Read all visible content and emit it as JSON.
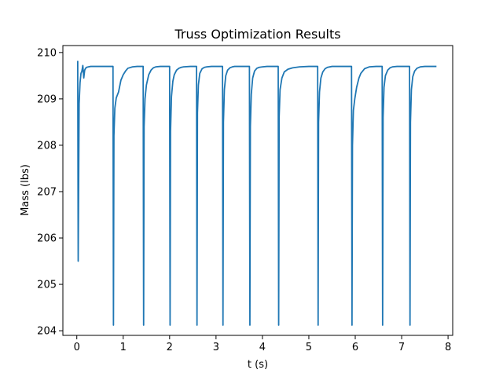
{
  "chart_data": {
    "type": "line",
    "title": "Truss Optimization Results",
    "xlabel": "t (s)",
    "ylabel": "Mass (lbs)",
    "xlim": [
      -0.3,
      8.1
    ],
    "ylim": [
      203.9,
      210.15
    ],
    "xticks": [
      0,
      1,
      2,
      3,
      4,
      5,
      6,
      7,
      8
    ],
    "yticks": [
      204,
      205,
      206,
      207,
      208,
      209,
      210
    ],
    "grid": false,
    "legend": "none",
    "series": [
      {
        "color": "#1f77b4",
        "x": [
          0.02,
          0.03,
          0.05,
          0.07,
          0.09,
          0.11,
          0.13,
          0.15,
          0.17,
          0.19,
          0.21,
          0.25,
          0.3,
          0.45,
          0.6,
          0.78,
          0.79,
          0.8,
          0.82,
          0.85,
          0.9,
          0.95,
          1.0,
          1.05,
          1.1,
          1.2,
          1.3,
          1.43,
          1.44,
          1.45,
          1.47,
          1.5,
          1.55,
          1.6,
          1.65,
          1.7,
          1.8,
          1.9,
          2.0,
          2.01,
          2.02,
          2.04,
          2.07,
          2.1,
          2.15,
          2.2,
          2.25,
          2.3,
          2.45,
          2.58,
          2.59,
          2.6,
          2.62,
          2.65,
          2.7,
          2.75,
          2.8,
          2.9,
          3.0,
          3.14,
          3.15,
          3.16,
          3.18,
          3.21,
          3.25,
          3.3,
          3.35,
          3.4,
          3.5,
          3.6,
          3.72,
          3.73,
          3.74,
          3.76,
          3.79,
          3.83,
          3.88,
          3.93,
          4.0,
          4.1,
          4.2,
          4.34,
          4.35,
          4.36,
          4.38,
          4.42,
          4.47,
          4.55,
          4.65,
          4.8,
          5.0,
          5.19,
          5.2,
          5.21,
          5.23,
          5.26,
          5.3,
          5.35,
          5.4,
          5.5,
          5.6,
          5.8,
          5.92,
          5.93,
          5.94,
          5.96,
          5.99,
          6.03,
          6.08,
          6.12,
          6.2,
          6.3,
          6.45,
          6.58,
          6.59,
          6.6,
          6.62,
          6.65,
          6.7,
          6.75,
          6.8,
          6.9,
          7.0,
          7.17,
          7.18,
          7.19,
          7.21,
          7.24,
          7.28,
          7.33,
          7.4,
          7.5,
          7.6,
          7.75
        ],
        "y": [
          209.82,
          205.5,
          208.9,
          209.35,
          209.55,
          209.6,
          209.72,
          209.45,
          209.62,
          209.66,
          209.68,
          209.69,
          209.7,
          209.7,
          209.7,
          209.7,
          204.12,
          208.2,
          208.8,
          209.02,
          209.15,
          209.4,
          209.52,
          209.6,
          209.66,
          209.69,
          209.7,
          209.7,
          204.12,
          208.4,
          209.0,
          209.3,
          209.52,
          209.62,
          209.67,
          209.69,
          209.7,
          209.7,
          209.7,
          204.12,
          208.3,
          209.05,
          209.38,
          209.52,
          209.62,
          209.66,
          209.68,
          209.69,
          209.7,
          209.7,
          204.12,
          208.7,
          209.3,
          209.55,
          209.65,
          209.68,
          209.69,
          209.7,
          209.7,
          209.7,
          204.12,
          208.5,
          209.2,
          209.5,
          209.62,
          209.67,
          209.69,
          209.7,
          209.7,
          209.7,
          209.7,
          204.12,
          208.4,
          209.1,
          209.45,
          209.6,
          209.66,
          209.68,
          209.69,
          209.7,
          209.7,
          209.7,
          204.12,
          208.6,
          209.2,
          209.45,
          209.58,
          209.64,
          209.67,
          209.69,
          209.7,
          209.7,
          204.12,
          208.5,
          209.15,
          209.45,
          209.58,
          209.65,
          209.68,
          209.7,
          209.7,
          209.7,
          209.7,
          204.12,
          208.0,
          208.75,
          209.0,
          209.25,
          209.45,
          209.55,
          209.65,
          209.69,
          209.7,
          209.7,
          204.12,
          208.6,
          209.25,
          209.5,
          209.62,
          209.67,
          209.69,
          209.7,
          209.7,
          209.7,
          204.12,
          208.5,
          209.2,
          209.48,
          209.6,
          209.66,
          209.69,
          209.7,
          209.7,
          209.7
        ]
      }
    ]
  }
}
